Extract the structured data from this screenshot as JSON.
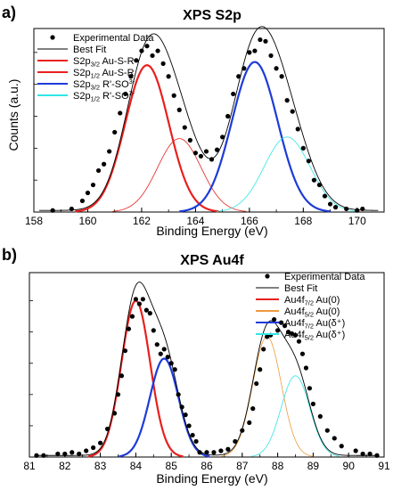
{
  "chart_data": [
    {
      "type": "line",
      "panel_label": "a)",
      "title": "XPS S2p",
      "xlabel": "Binding Energy (eV)",
      "ylabel": "Counts (a.u.)",
      "xlim": [
        158,
        171
      ],
      "ylim": [
        0,
        1.15
      ],
      "x_ticks": [
        158,
        160,
        162,
        164,
        166,
        168,
        170
      ],
      "grid": false,
      "legend_position": "top-left",
      "legend": [
        {
          "main": "Experimental Data",
          "sub": "",
          "tail": "",
          "sup": "",
          "color": "#000000",
          "kind": "marker"
        },
        {
          "main": "Best Fit",
          "sub": "",
          "tail": "",
          "sup": "",
          "color": "#000000",
          "kind": "line"
        },
        {
          "main": "S2p",
          "sub": "3/2",
          "tail": " Au-S-R",
          "sup": "",
          "color": "#e8201e",
          "kind": "line"
        },
        {
          "main": "S2p",
          "sub": "1/2",
          "tail": " Au-S-R",
          "sup": "",
          "color": "#e8201e",
          "kind": "line"
        },
        {
          "main": "S2p",
          "sub": "3/2",
          "tail": " R'-SO",
          "sup": "3-",
          "color": "#1d3bd8",
          "kind": "line"
        },
        {
          "main": "S2p",
          "sub": "1/2",
          "tail": " R'-SO",
          "sup": "3-",
          "color": "#30e6e6",
          "kind": "line"
        }
      ],
      "components": [
        {
          "color": "#e8201e",
          "width": 2.2,
          "center": 162.2,
          "fwhm": 1.9,
          "amp": 0.92
        },
        {
          "color": "#e8201e",
          "width": 0.8,
          "center": 163.4,
          "fwhm": 1.9,
          "amp": 0.46
        },
        {
          "color": "#1d3bd8",
          "width": 2.2,
          "center": 166.2,
          "fwhm": 2.0,
          "amp": 0.94
        },
        {
          "color": "#30e6e6",
          "width": 0.8,
          "center": 167.4,
          "fwhm": 2.0,
          "amp": 0.47
        }
      ],
      "points": {
        "x": [
          158.7,
          159.4,
          159.8,
          160.0,
          160.2,
          160.4,
          160.6,
          160.8,
          161.0,
          161.2,
          161.4,
          161.6,
          161.8,
          162.0,
          162.2,
          162.4,
          162.6,
          162.8,
          163.0,
          163.2,
          163.4,
          163.6,
          163.8,
          164.0,
          164.2,
          164.4,
          164.6,
          164.8,
          165.0,
          165.2,
          165.4,
          165.6,
          165.8,
          166.0,
          166.2,
          166.4,
          166.6,
          166.8,
          167.0,
          167.2,
          167.4,
          167.6,
          167.8,
          168.0,
          168.2,
          168.4,
          168.6,
          168.8,
          169.0,
          169.2,
          169.6,
          170.0,
          170.2
        ],
        "y": [
          0.01,
          0.02,
          0.07,
          0.12,
          0.17,
          0.26,
          0.3,
          0.38,
          0.5,
          0.62,
          0.74,
          0.85,
          0.95,
          1.01,
          1.04,
          0.98,
          1.01,
          0.93,
          0.85,
          0.73,
          0.64,
          0.53,
          0.45,
          0.37,
          0.35,
          0.38,
          0.33,
          0.39,
          0.47,
          0.6,
          0.74,
          0.85,
          0.9,
          1.0,
          1.01,
          1.08,
          1.07,
          0.98,
          0.9,
          0.85,
          0.7,
          0.63,
          0.52,
          0.4,
          0.32,
          0.2,
          0.17,
          0.1,
          0.05,
          0.03,
          0.02,
          0.01,
          0.02
        ]
      }
    },
    {
      "type": "line",
      "panel_label": "b)",
      "title": "XPS Au4f",
      "xlabel": "Binding Energy (eV)",
      "ylabel": "",
      "xlim": [
        81,
        91
      ],
      "ylim": [
        0,
        1.18
      ],
      "x_ticks": [
        81,
        82,
        83,
        84,
        85,
        86,
        87,
        88,
        89,
        90,
        91
      ],
      "grid": false,
      "legend_position": "top-right",
      "legend": [
        {
          "main": "Experimental Data",
          "sub": "",
          "tail": "",
          "sup": "",
          "color": "#000000",
          "kind": "marker"
        },
        {
          "main": "Best Fit",
          "sub": "",
          "tail": "",
          "sup": "",
          "color": "#000000",
          "kind": "line"
        },
        {
          "main": "Au4f",
          "sub": "7/2",
          "tail": " Au(0)",
          "sup": "",
          "color": "#e8201e",
          "kind": "line"
        },
        {
          "main": "Au4f",
          "sub": "5/2",
          "tail": " Au(0)",
          "sup": "",
          "color": "#ee9a3e",
          "kind": "line"
        },
        {
          "main": "Au4f",
          "sub": "7/2",
          "tail": " Au(δ⁺)",
          "sup": "",
          "color": "#1d3bd8",
          "kind": "line"
        },
        {
          "main": "Au4f",
          "sub": "5/2",
          "tail": " Au(δ⁺)",
          "sup": "",
          "color": "#30e6e6",
          "kind": "line"
        }
      ],
      "components": [
        {
          "color": "#e8201e",
          "width": 2.2,
          "center": 84.0,
          "fwhm": 0.95,
          "amp": 1.0
        },
        {
          "color": "#1d3bd8",
          "width": 2.2,
          "center": 84.8,
          "fwhm": 0.95,
          "amp": 0.63
        },
        {
          "color": "#ee9a3e",
          "width": 0.8,
          "center": 87.7,
          "fwhm": 0.95,
          "amp": 0.77
        },
        {
          "color": "#30e6e6",
          "width": 0.8,
          "center": 88.5,
          "fwhm": 0.95,
          "amp": 0.52
        }
      ],
      "points": {
        "x": [
          81.2,
          81.4,
          81.8,
          82.0,
          82.2,
          82.4,
          82.6,
          82.8,
          83.0,
          83.2,
          83.4,
          83.5,
          83.6,
          83.7,
          83.8,
          83.9,
          84.0,
          84.1,
          84.2,
          84.3,
          84.4,
          84.5,
          84.6,
          84.7,
          84.8,
          84.9,
          85.0,
          85.1,
          85.2,
          85.3,
          85.4,
          85.5,
          85.6,
          85.7,
          85.8,
          86.0,
          86.2,
          86.4,
          86.6,
          86.8,
          87.0,
          87.2,
          87.3,
          87.4,
          87.5,
          87.6,
          87.7,
          87.8,
          87.9,
          88.0,
          88.1,
          88.2,
          88.3,
          88.4,
          88.5,
          88.6,
          88.7,
          88.8,
          88.9,
          89.0,
          89.2,
          89.4,
          89.6,
          89.8,
          90.2,
          90.4,
          90.6,
          90.8
        ],
        "y": [
          0.01,
          0.01,
          0.02,
          0.02,
          0.03,
          0.02,
          0.04,
          0.06,
          0.09,
          0.18,
          0.28,
          0.4,
          0.52,
          0.68,
          0.82,
          0.9,
          1.01,
          0.98,
          1.01,
          0.94,
          0.92,
          0.81,
          0.72,
          0.66,
          0.69,
          0.64,
          0.6,
          0.56,
          0.4,
          0.32,
          0.27,
          0.2,
          0.14,
          0.1,
          0.03,
          0.03,
          0.03,
          0.04,
          0.05,
          0.1,
          0.17,
          0.22,
          0.31,
          0.47,
          0.56,
          0.69,
          0.77,
          0.78,
          0.88,
          0.81,
          0.86,
          0.84,
          0.8,
          0.79,
          0.78,
          0.74,
          0.66,
          0.57,
          0.44,
          0.34,
          0.26,
          0.17,
          0.12,
          0.07,
          0.04,
          0.02,
          0.02,
          0.01
        ]
      }
    }
  ]
}
